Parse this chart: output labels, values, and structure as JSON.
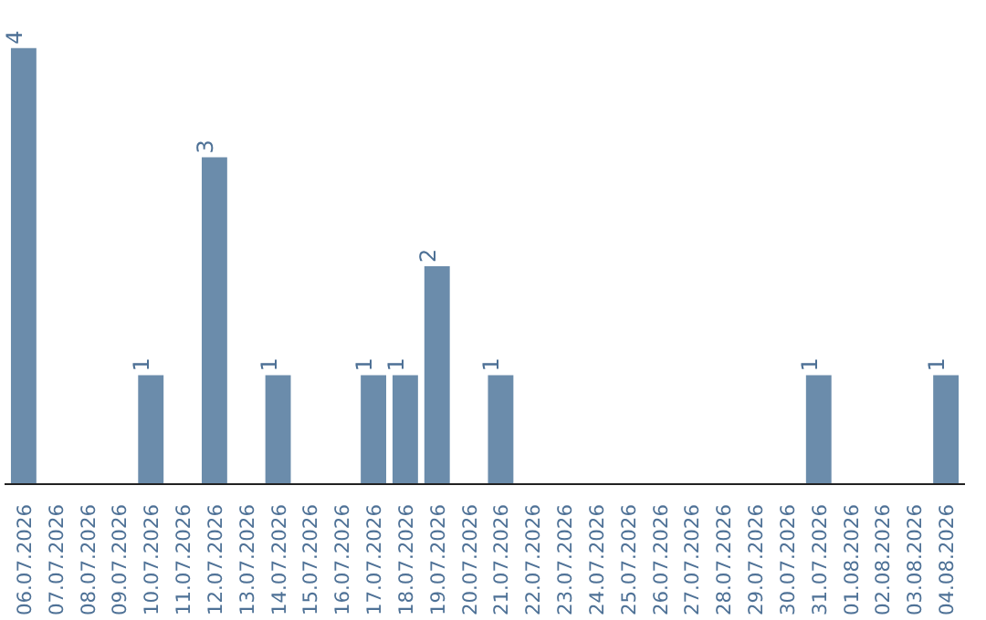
{
  "chart_data": {
    "type": "bar",
    "categories": [
      "06.07.2026",
      "07.07.2026",
      "08.07.2026",
      "09.07.2026",
      "10.07.2026",
      "11.07.2026",
      "12.07.2026",
      "13.07.2026",
      "14.07.2026",
      "15.07.2026",
      "16.07.2026",
      "17.07.2026",
      "18.07.2026",
      "19.07.2026",
      "20.07.2026",
      "21.07.2026",
      "22.07.2026",
      "23.07.2026",
      "24.07.2026",
      "25.07.2026",
      "26.07.2026",
      "27.07.2026",
      "28.07.2026",
      "29.07.2026",
      "30.07.2026",
      "31.07.2026",
      "01.08.2026",
      "02.08.2026",
      "03.08.2026",
      "04.08.2026"
    ],
    "values": [
      4,
      0,
      0,
      0,
      1,
      0,
      3,
      0,
      1,
      0,
      0,
      1,
      1,
      2,
      0,
      1,
      0,
      0,
      0,
      0,
      0,
      0,
      0,
      0,
      0,
      1,
      0,
      0,
      0,
      1
    ],
    "value_labels": [
      "4",
      null,
      null,
      null,
      "1",
      null,
      "3",
      null,
      "1",
      null,
      null,
      "1",
      "1",
      "2",
      null,
      "1",
      null,
      null,
      null,
      null,
      null,
      null,
      null,
      null,
      null,
      "1",
      null,
      null,
      null,
      "1"
    ],
    "color": "#6b8cab"
  }
}
